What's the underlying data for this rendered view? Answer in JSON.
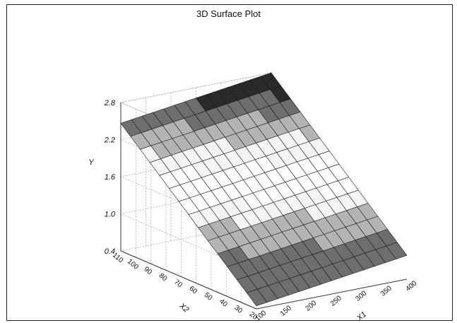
{
  "chart_data": {
    "type": "surface",
    "title": "3D Surface Plot",
    "xlabel": "X1",
    "ylabel": "X2",
    "zlabel": "Y",
    "x_ticks": [
      "100",
      "150",
      "200",
      "250",
      "300",
      "350",
      "400"
    ],
    "y_ticks": [
      "20",
      "30",
      "40",
      "50",
      "60",
      "70",
      "80",
      "90",
      "100",
      "110"
    ],
    "z_ticks": [
      "0.4",
      "1.0",
      "1.6",
      "2.2",
      "2.8"
    ],
    "x_range": [
      100,
      400
    ],
    "y_range": [
      20,
      110
    ],
    "z_range": [
      0.4,
      2.8
    ],
    "grid": true,
    "colormap": [
      "#2a2a2a",
      "#6e6e6e",
      "#b4b4b4",
      "#f4f4f4"
    ]
  }
}
